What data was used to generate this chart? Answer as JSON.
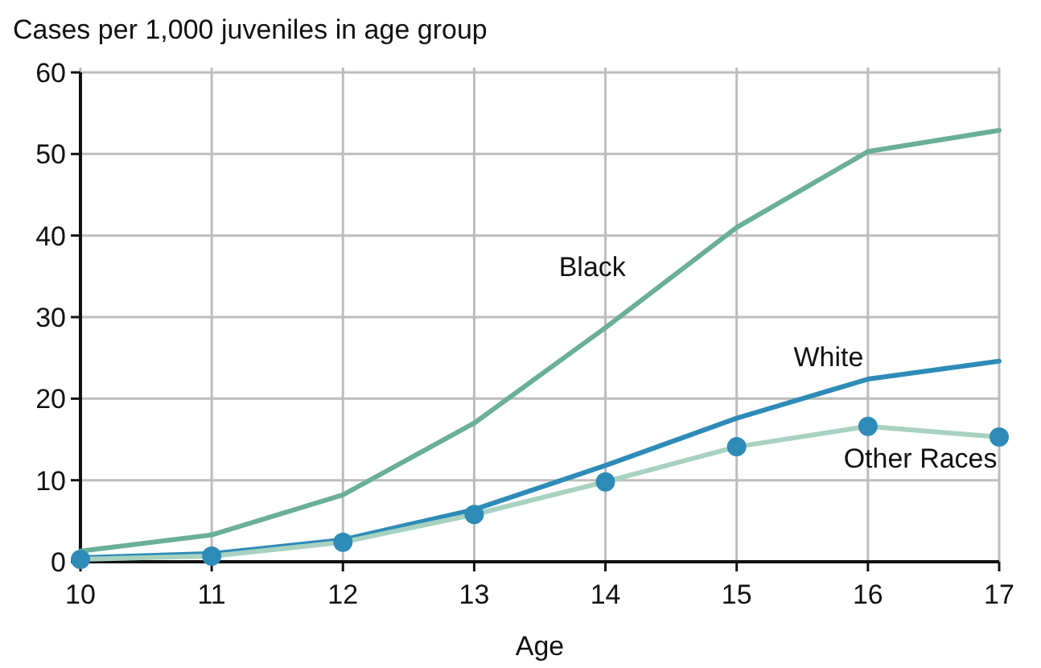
{
  "chart_data": {
    "type": "line",
    "ylabel": "Cases per 1,000 juveniles in age group",
    "xlabel": "Age",
    "x": [
      10,
      11,
      12,
      13,
      14,
      15,
      16,
      17
    ],
    "series": [
      {
        "name": "Black",
        "color": "#6aaf97",
        "values": [
          1.3,
          3.3,
          8.2,
          17,
          28.7,
          41,
          50.3,
          52.9
        ]
      },
      {
        "name": "White",
        "color": "#2e8bb8",
        "values": [
          0.5,
          1,
          2.7,
          6.4,
          11.8,
          17.6,
          22.4,
          24.6
        ]
      },
      {
        "name": "Other Races",
        "color": "#a8d2c0",
        "values": [
          0.3,
          0.7,
          2.4,
          5.8,
          9.8,
          14.1,
          16.6,
          15.3
        ]
      },
      {
        "type": "scatter",
        "color": "#2e8bb8",
        "marker": "circle",
        "values": [
          0.3,
          0.7,
          2.4,
          5.8,
          9.8,
          14.1,
          16.6,
          15.3
        ]
      }
    ],
    "xlim": [
      10,
      17
    ],
    "xticks": [
      10,
      11,
      12,
      13,
      14,
      15,
      16,
      17
    ],
    "ylim": [
      0,
      60
    ],
    "yticks": [
      0,
      10,
      20,
      30,
      40,
      50,
      60
    ],
    "grid": true,
    "line_style": "solid"
  }
}
